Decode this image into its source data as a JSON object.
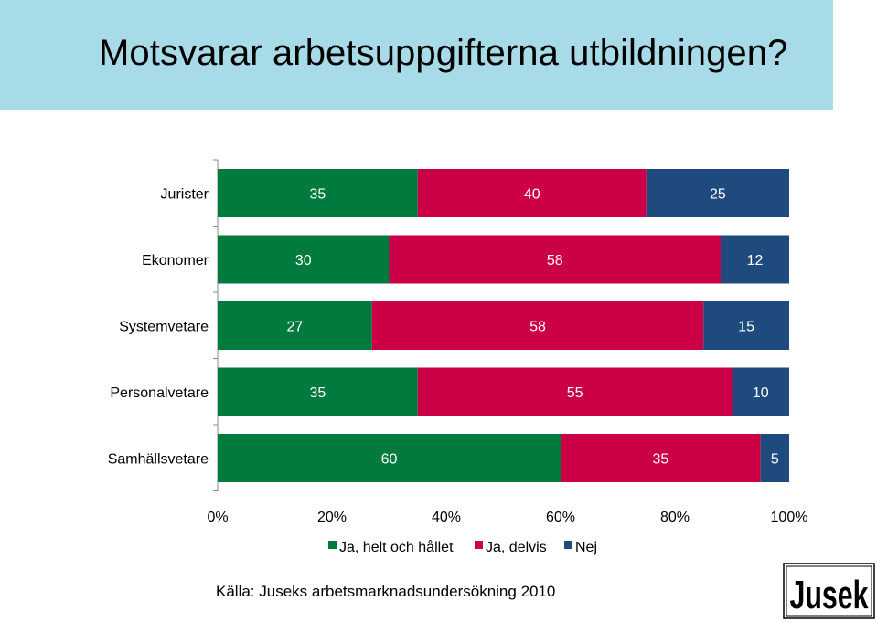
{
  "slide": {
    "title": "Motsvarar arbetsuppgifterna utbildningen?",
    "source": "Källa: Juseks arbetsmarknadsundersökning 2010",
    "logo_text": "Jusek"
  },
  "colors": {
    "title_background": "#a8dbe8",
    "series": [
      "#007a3d",
      "#cc0047",
      "#1f4a7e"
    ]
  },
  "chart_data": {
    "type": "bar",
    "orientation": "horizontal",
    "stacked": "percent",
    "categories": [
      "Jurister",
      "Ekonomer",
      "Systemvetare",
      "Personalvetare",
      "Samhällsvetare"
    ],
    "series": [
      {
        "name": "Ja, helt och hållet",
        "values": [
          35,
          30,
          27,
          35,
          60
        ]
      },
      {
        "name": "Ja, delvis",
        "values": [
          40,
          58,
          58,
          55,
          35
        ]
      },
      {
        "name": "Nej",
        "values": [
          25,
          12,
          15,
          10,
          5
        ]
      }
    ],
    "xlim": [
      0,
      100
    ],
    "xticks": [
      "0%",
      "20%",
      "40%",
      "60%",
      "80%",
      "100%"
    ],
    "legend_position": "bottom",
    "grid": false
  }
}
